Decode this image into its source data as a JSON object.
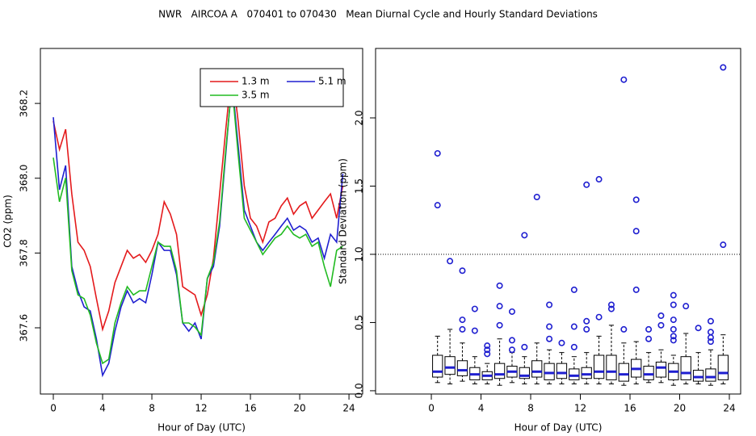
{
  "title": "NWR   AIRCOA A   070401 to 070430   Mean Diurnal Cycle and Hourly Standard Deviations",
  "chart_data": [
    {
      "type": "line",
      "xlabel": "Hour of Day (UTC)",
      "ylabel": "CO2 (ppm)",
      "xlim": [
        -1.05,
        25.11
      ],
      "ylim": [
        367.423,
        368.347
      ],
      "xticks": [
        0,
        4,
        8,
        12,
        16,
        20,
        24
      ],
      "yticks": [
        367.6,
        367.8,
        {
          "value": 368,
          "label": "368.0"
        },
        368.2
      ],
      "legend": "top-right",
      "x": [
        0,
        0.5,
        1,
        1.5,
        2,
        2.5,
        3,
        3.5,
        4,
        4.5,
        5,
        5.5,
        6,
        6.5,
        7,
        7.5,
        8,
        8.5,
        9,
        9.5,
        10,
        10.5,
        11,
        11.5,
        12,
        12.5,
        13,
        13.5,
        14,
        14.5,
        15,
        15.5,
        16,
        16.5,
        17,
        17.5,
        18,
        18.5,
        19,
        19.5,
        20,
        20.5,
        21,
        21.5,
        22,
        22.5,
        23,
        23.5
      ],
      "series": [
        {
          "name": "1.3 m",
          "color": "#e41a1c",
          "values": [
            368.153,
            368.077,
            368.131,
            367.958,
            367.829,
            367.807,
            367.764,
            367.678,
            367.596,
            367.645,
            367.721,
            367.764,
            367.807,
            367.786,
            367.796,
            367.775,
            367.807,
            367.85,
            367.937,
            367.904,
            367.85,
            367.71,
            367.699,
            367.688,
            367.634,
            367.688,
            367.786,
            367.958,
            368.131,
            368.293,
            368.153,
            367.98,
            367.893,
            367.872,
            367.829,
            367.883,
            367.893,
            367.926,
            367.947,
            367.904,
            367.926,
            367.937,
            367.893,
            367.915,
            367.937,
            367.958,
            367.893,
            367.98
          ]
        },
        {
          "name": "5.1 m",
          "color": "#1f1fd0",
          "values": [
            368.163,
            367.969,
            368.034,
            367.764,
            367.699,
            367.656,
            367.645,
            367.57,
            367.473,
            367.505,
            367.591,
            367.656,
            367.699,
            367.667,
            367.678,
            367.667,
            367.742,
            367.829,
            367.807,
            367.807,
            367.742,
            367.613,
            367.591,
            367.613,
            367.57,
            367.732,
            367.764,
            367.872,
            368.066,
            368.26,
            368.088,
            367.915,
            367.872,
            367.829,
            367.807,
            367.829,
            367.85,
            367.872,
            367.893,
            367.861,
            367.872,
            367.861,
            367.829,
            367.84,
            367.786,
            367.85,
            367.829,
            368.012
          ]
        },
        {
          "name": "3.5 m",
          "color": "#22bb22",
          "values": [
            368.055,
            367.937,
            368.001,
            367.753,
            367.688,
            367.678,
            367.634,
            367.559,
            367.505,
            367.516,
            367.613,
            367.667,
            367.71,
            367.688,
            367.699,
            367.699,
            367.764,
            367.829,
            367.818,
            367.818,
            367.753,
            367.613,
            367.613,
            367.602,
            367.581,
            367.732,
            367.775,
            367.883,
            368.077,
            368.25,
            368.066,
            367.893,
            367.861,
            367.829,
            367.796,
            367.818,
            367.84,
            367.85,
            367.872,
            367.85,
            367.84,
            367.85,
            367.818,
            367.829,
            367.764,
            367.71,
            367.807,
            367.818
          ]
        }
      ]
    },
    {
      "type": "box",
      "xlabel": "Hour of Day (UTC)",
      "ylabel": "Standard Deviation (ppm)",
      "xlim": [
        -4.49,
        24.91
      ],
      "ylim": [
        -0.024,
        2.509
      ],
      "xticks": [
        0,
        4,
        8,
        12,
        16,
        20,
        24
      ],
      "yticks": [
        {
          "value": 0,
          "label": "0.0"
        },
        0.5,
        {
          "value": 1,
          "label": "1.0"
        },
        1.5,
        {
          "value": 2,
          "label": "2.0"
        }
      ],
      "hline": 1,
      "box_color": "#000000",
      "median_color": "#1f1fd0",
      "flier_color": "#1f1fd0",
      "x": [
        0.5,
        1.5,
        2.5,
        3.5,
        4.5,
        5.5,
        6.5,
        7.5,
        8.5,
        9.5,
        10.5,
        11.5,
        12.5,
        13.5,
        14.5,
        15.5,
        16.5,
        17.5,
        18.5,
        19.5,
        20.5,
        21.5,
        22.5,
        23.5
      ],
      "boxes": [
        {
          "whislo": 0.06,
          "q1": 0.1,
          "med": 0.14,
          "q3": 0.26,
          "whishi": 0.4,
          "fliers": [
            1.36,
            1.74
          ]
        },
        {
          "whislo": 0.05,
          "q1": 0.12,
          "med": 0.17,
          "q3": 0.25,
          "whishi": 0.45,
          "fliers": [
            0.95
          ]
        },
        {
          "whislo": 0.07,
          "q1": 0.11,
          "med": 0.15,
          "q3": 0.22,
          "whishi": 0.35,
          "fliers": [
            0.45,
            0.52,
            0.88
          ]
        },
        {
          "whislo": 0.05,
          "q1": 0.08,
          "med": 0.12,
          "q3": 0.17,
          "whishi": 0.25,
          "fliers": [
            0.44,
            0.6
          ]
        },
        {
          "whislo": 0.05,
          "q1": 0.08,
          "med": 0.11,
          "q3": 0.14,
          "whishi": 0.2,
          "fliers": [
            0.27,
            0.3,
            0.33
          ]
        },
        {
          "whislo": 0.04,
          "q1": 0.09,
          "med": 0.12,
          "q3": 0.2,
          "whishi": 0.38,
          "fliers": [
            0.48,
            0.62,
            0.77
          ]
        },
        {
          "whislo": 0.06,
          "q1": 0.1,
          "med": 0.14,
          "q3": 0.18,
          "whishi": 0.28,
          "fliers": [
            0.3,
            0.37,
            0.58
          ]
        },
        {
          "whislo": 0.05,
          "q1": 0.09,
          "med": 0.11,
          "q3": 0.17,
          "whishi": 0.25,
          "fliers": [
            0.32,
            1.14
          ]
        },
        {
          "whislo": 0.05,
          "q1": 0.1,
          "med": 0.14,
          "q3": 0.22,
          "whishi": 0.35,
          "fliers": [
            1.42
          ]
        },
        {
          "whislo": 0.05,
          "q1": 0.08,
          "med": 0.13,
          "q3": 0.2,
          "whishi": 0.3,
          "fliers": [
            0.38,
            0.47,
            0.63
          ]
        },
        {
          "whislo": 0.05,
          "q1": 0.09,
          "med": 0.13,
          "q3": 0.2,
          "whishi": 0.28,
          "fliers": [
            0.35
          ]
        },
        {
          "whislo": 0.05,
          "q1": 0.08,
          "med": 0.11,
          "q3": 0.16,
          "whishi": 0.25,
          "fliers": [
            0.32,
            0.47,
            0.74
          ]
        },
        {
          "whislo": 0.05,
          "q1": 0.09,
          "med": 0.12,
          "q3": 0.17,
          "whishi": 0.28,
          "fliers": [
            0.45,
            0.51,
            1.51
          ]
        },
        {
          "whislo": 0.05,
          "q1": 0.09,
          "med": 0.14,
          "q3": 0.26,
          "whishi": 0.4,
          "fliers": [
            0.54,
            1.55
          ]
        },
        {
          "whislo": 0.05,
          "q1": 0.08,
          "med": 0.14,
          "q3": 0.26,
          "whishi": 0.48,
          "fliers": [
            0.6,
            0.63
          ]
        },
        {
          "whislo": 0.04,
          "q1": 0.07,
          "med": 0.12,
          "q3": 0.2,
          "whishi": 0.35,
          "fliers": [
            0.45,
            2.28
          ]
        },
        {
          "whislo": 0.05,
          "q1": 0.1,
          "med": 0.16,
          "q3": 0.23,
          "whishi": 0.36,
          "fliers": [
            0.74,
            1.17,
            1.4
          ]
        },
        {
          "whislo": 0.06,
          "q1": 0.08,
          "med": 0.12,
          "q3": 0.18,
          "whishi": 0.28,
          "fliers": [
            0.38,
            0.45
          ]
        },
        {
          "whislo": 0.06,
          "q1": 0.1,
          "med": 0.17,
          "q3": 0.21,
          "whishi": 0.3,
          "fliers": [
            0.48,
            0.55
          ]
        },
        {
          "whislo": 0.04,
          "q1": 0.08,
          "med": 0.14,
          "q3": 0.2,
          "whishi": 0.26,
          "fliers": [
            0.37,
            0.4,
            0.45,
            0.52,
            0.63,
            0.7
          ]
        },
        {
          "whislo": 0.05,
          "q1": 0.08,
          "med": 0.13,
          "q3": 0.25,
          "whishi": 0.42,
          "fliers": [
            0.62
          ]
        },
        {
          "whislo": 0.05,
          "q1": 0.07,
          "med": 0.1,
          "q3": 0.15,
          "whishi": 0.28,
          "fliers": [
            0.46
          ]
        },
        {
          "whislo": 0.04,
          "q1": 0.07,
          "med": 0.1,
          "q3": 0.16,
          "whishi": 0.3,
          "fliers": [
            0.36,
            0.39,
            0.43,
            0.51
          ]
        },
        {
          "whislo": 0.05,
          "q1": 0.08,
          "med": 0.13,
          "q3": 0.26,
          "whishi": 0.41,
          "fliers": [
            1.07,
            2.37
          ]
        }
      ]
    }
  ]
}
